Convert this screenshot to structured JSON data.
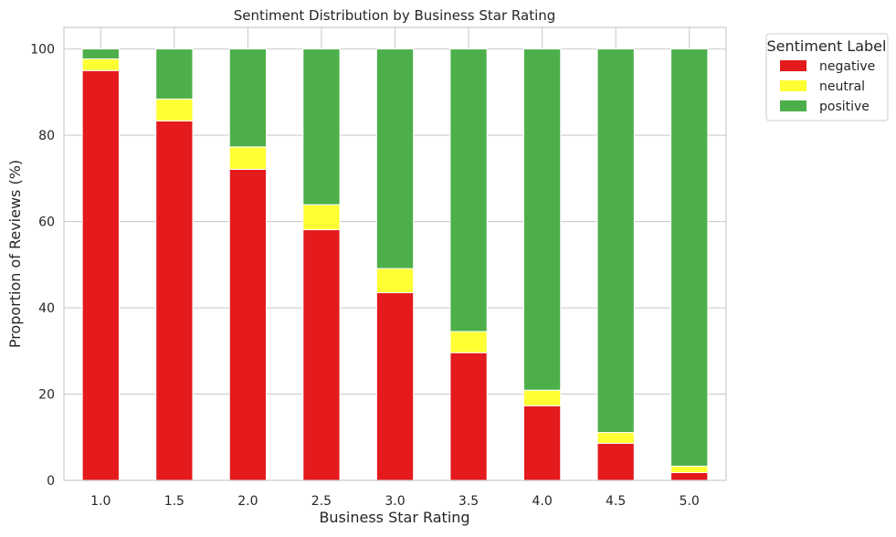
{
  "chart_data": {
    "type": "bar",
    "stacked": true,
    "title": "Sentiment Distribution by Business Star Rating",
    "xlabel": "Business Star Rating",
    "ylabel": "Proportion of Reviews (%)",
    "categories": [
      "1.0",
      "1.5",
      "2.0",
      "2.5",
      "3.0",
      "3.5",
      "4.0",
      "4.5",
      "5.0"
    ],
    "ylim": [
      0,
      105
    ],
    "yticks": [
      0,
      20,
      40,
      60,
      80,
      100
    ],
    "grid": true,
    "legend": {
      "title": "Sentiment Label",
      "placement": "outside-top-right"
    },
    "series": [
      {
        "name": "negative",
        "color": "#e41a1c",
        "values": [
          95.0,
          83.3,
          72.1,
          58.1,
          43.5,
          29.6,
          17.3,
          8.6,
          1.8
        ]
      },
      {
        "name": "neutral",
        "color": "#ffff33",
        "values": [
          2.7,
          5.1,
          5.2,
          5.8,
          5.6,
          4.9,
          3.6,
          2.5,
          1.5
        ]
      },
      {
        "name": "positive",
        "color": "#4daf4a",
        "values": [
          2.3,
          11.6,
          22.7,
          36.1,
          50.9,
          65.5,
          79.1,
          88.9,
          96.7
        ]
      }
    ]
  }
}
